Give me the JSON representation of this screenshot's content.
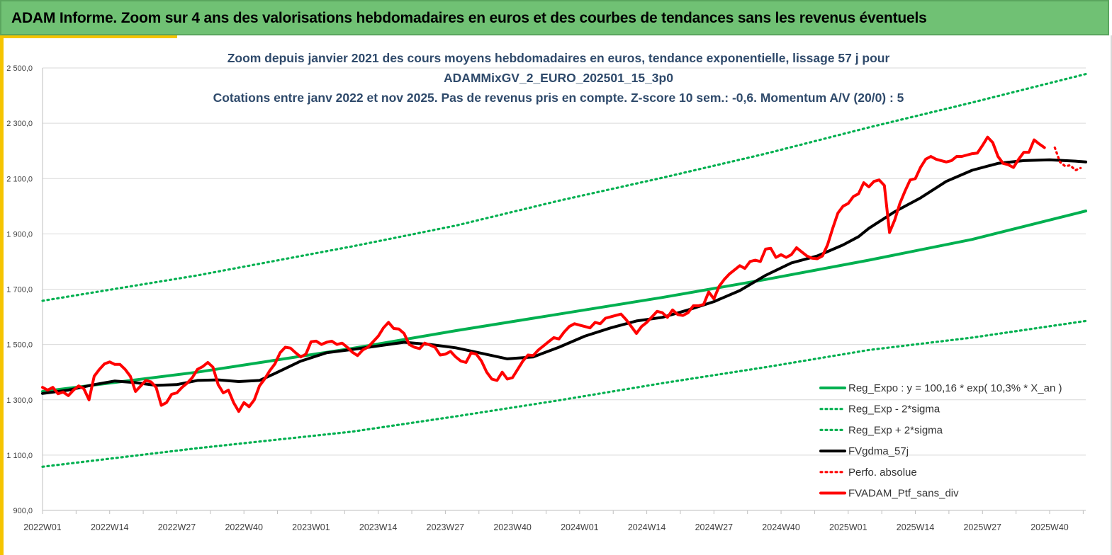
{
  "banner": {
    "text": "ADAM Informe. Zoom sur 4 ans des valorisations hebdomadaires en euros et des courbes de tendances sans les revenus éventuels"
  },
  "colors": {
    "banner_bg": "#70c174",
    "accent_yellow": "#f5c400",
    "title_text": "#2f4a6b",
    "reg_expo": "#00b050",
    "bands": "#00b050",
    "gdma": "#000000",
    "perf": "#ff0000"
  },
  "chart_data": {
    "type": "line",
    "title_lines": [
      "Zoom depuis janvier 2021 des cours moyens hebdomadaires  en euros, tendance exponentielle, lissage 57 j pour",
      "ADAMMixGV_2_EURO_202501_15_3p0",
      "Cotations  entre janv 2022 et nov 2025. Pas de revenus pris en compte. Z-score 10 sem.: -0,6. Momentum A/V (20/0) : 5"
    ],
    "ylim": [
      900,
      2500
    ],
    "y_ticks": [
      {
        "value": 900,
        "label": "900,0"
      },
      {
        "value": 1100,
        "label": "1 100,0"
      },
      {
        "value": 1300,
        "label": "1 300,0"
      },
      {
        "value": 1500,
        "label": "1 500,0"
      },
      {
        "value": 1700,
        "label": "1 700,0"
      },
      {
        "value": 1900,
        "label": "1 900,0"
      },
      {
        "value": 2100,
        "label": "2 100,0"
      },
      {
        "value": 2300,
        "label": "2 300,0"
      },
      {
        "value": 2500,
        "label": "2 500,0"
      }
    ],
    "x_range_weeks": [
      0,
      202
    ],
    "x_ticks": [
      {
        "week": 0,
        "label": "2022W01"
      },
      {
        "week": 13,
        "label": "2022W14"
      },
      {
        "week": 26,
        "label": "2022W27"
      },
      {
        "week": 39,
        "label": "2022W40"
      },
      {
        "week": 52,
        "label": "2023W01"
      },
      {
        "week": 65,
        "label": "2023W14"
      },
      {
        "week": 78,
        "label": "2023W27"
      },
      {
        "week": 91,
        "label": "2023W40"
      },
      {
        "week": 104,
        "label": "2024W01"
      },
      {
        "week": 117,
        "label": "2024W14"
      },
      {
        "week": 130,
        "label": "2024W27"
      },
      {
        "week": 143,
        "label": "2024W40"
      },
      {
        "week": 156,
        "label": "2025W01"
      },
      {
        "week": 169,
        "label": "2025W14"
      },
      {
        "week": 182,
        "label": "2025W27"
      },
      {
        "week": 195,
        "label": "2025W40"
      }
    ],
    "grid": true,
    "legend_position": "bottom-right",
    "series": [
      {
        "name": "Reg_Expo : y = 100,16 * exp( 10,3% *  X_an )",
        "style": "solid-thick",
        "color": "#00b050",
        "points": [
          [
            0,
            1330
          ],
          [
            30,
            1400
          ],
          [
            60,
            1486
          ],
          [
            80,
            1550
          ],
          [
            100,
            1610
          ],
          [
            120,
            1670
          ],
          [
            140,
            1735
          ],
          [
            160,
            1805
          ],
          [
            180,
            1880
          ],
          [
            202,
            1983
          ]
        ]
      },
      {
        "name": "Reg_Exp - 2*sigma",
        "style": "dotted",
        "color": "#00b050",
        "points": [
          [
            0,
            1058
          ],
          [
            30,
            1125
          ],
          [
            60,
            1185
          ],
          [
            80,
            1240
          ],
          [
            100,
            1298
          ],
          [
            120,
            1360
          ],
          [
            140,
            1418
          ],
          [
            160,
            1480
          ],
          [
            180,
            1525
          ],
          [
            202,
            1585
          ]
        ]
      },
      {
        "name": "Reg_Exp + 2*sigma",
        "style": "dotted",
        "color": "#00b050",
        "points": [
          [
            0,
            1658
          ],
          [
            30,
            1750
          ],
          [
            60,
            1855
          ],
          [
            80,
            1930
          ],
          [
            100,
            2020
          ],
          [
            120,
            2103
          ],
          [
            140,
            2190
          ],
          [
            160,
            2285
          ],
          [
            180,
            2375
          ],
          [
            202,
            2478
          ]
        ]
      },
      {
        "name": "FVgdma_57j",
        "style": "solid-thick",
        "color": "#000000",
        "points": [
          [
            0,
            1323
          ],
          [
            5,
            1335
          ],
          [
            10,
            1355
          ],
          [
            14,
            1368
          ],
          [
            18,
            1362
          ],
          [
            22,
            1352
          ],
          [
            26,
            1355
          ],
          [
            30,
            1370
          ],
          [
            34,
            1372
          ],
          [
            38,
            1366
          ],
          [
            42,
            1370
          ],
          [
            45,
            1395
          ],
          [
            50,
            1440
          ],
          [
            55,
            1470
          ],
          [
            60,
            1482
          ],
          [
            65,
            1495
          ],
          [
            70,
            1508
          ],
          [
            75,
            1500
          ],
          [
            80,
            1488
          ],
          [
            85,
            1468
          ],
          [
            90,
            1448
          ],
          [
            95,
            1455
          ],
          [
            100,
            1490
          ],
          [
            105,
            1530
          ],
          [
            110,
            1560
          ],
          [
            115,
            1585
          ],
          [
            120,
            1598
          ],
          [
            125,
            1625
          ],
          [
            130,
            1655
          ],
          [
            135,
            1695
          ],
          [
            140,
            1750
          ],
          [
            145,
            1795
          ],
          [
            150,
            1820
          ],
          [
            155,
            1860
          ],
          [
            158,
            1890
          ],
          [
            160,
            1920
          ],
          [
            165,
            1980
          ],
          [
            170,
            2030
          ],
          [
            175,
            2090
          ],
          [
            180,
            2130
          ],
          [
            185,
            2155
          ],
          [
            190,
            2165
          ],
          [
            195,
            2168
          ],
          [
            200,
            2163
          ],
          [
            202,
            2160
          ]
        ]
      },
      {
        "name": "Perfo. absolue",
        "style": "dotted",
        "color": "#ff0000",
        "points": [
          [
            196,
            2212
          ],
          [
            197,
            2160
          ],
          [
            198,
            2145
          ],
          [
            199,
            2148
          ],
          [
            200,
            2130
          ],
          [
            201,
            2138
          ]
        ]
      },
      {
        "name": "FVADAM_Ptf_sans_div",
        "style": "solid-thick",
        "color": "#ff0000",
        "points": [
          [
            0,
            1345
          ],
          [
            1,
            1335
          ],
          [
            2,
            1345
          ],
          [
            3,
            1322
          ],
          [
            4,
            1328
          ],
          [
            5,
            1315
          ],
          [
            6,
            1335
          ],
          [
            7,
            1350
          ],
          [
            8,
            1340
          ],
          [
            9,
            1300
          ],
          [
            10,
            1385
          ],
          [
            11,
            1410
          ],
          [
            12,
            1430
          ],
          [
            13,
            1437
          ],
          [
            14,
            1428
          ],
          [
            15,
            1428
          ],
          [
            16,
            1410
          ],
          [
            17,
            1385
          ],
          [
            18,
            1330
          ],
          [
            19,
            1350
          ],
          [
            20,
            1370
          ],
          [
            21,
            1365
          ],
          [
            22,
            1345
          ],
          [
            23,
            1280
          ],
          [
            24,
            1290
          ],
          [
            25,
            1320
          ],
          [
            26,
            1325
          ],
          [
            27,
            1345
          ],
          [
            28,
            1360
          ],
          [
            29,
            1380
          ],
          [
            30,
            1410
          ],
          [
            31,
            1420
          ],
          [
            32,
            1435
          ],
          [
            33,
            1418
          ],
          [
            34,
            1355
          ],
          [
            35,
            1325
          ],
          [
            36,
            1335
          ],
          [
            37,
            1290
          ],
          [
            38,
            1258
          ],
          [
            39,
            1290
          ],
          [
            40,
            1275
          ],
          [
            41,
            1300
          ],
          [
            42,
            1350
          ],
          [
            43,
            1375
          ],
          [
            44,
            1405
          ],
          [
            45,
            1430
          ],
          [
            46,
            1470
          ],
          [
            47,
            1490
          ],
          [
            48,
            1487
          ],
          [
            49,
            1470
          ],
          [
            50,
            1455
          ],
          [
            51,
            1465
          ],
          [
            52,
            1510
          ],
          [
            53,
            1512
          ],
          [
            54,
            1500
          ],
          [
            55,
            1508
          ],
          [
            56,
            1512
          ],
          [
            57,
            1500
          ],
          [
            58,
            1505
          ],
          [
            59,
            1490
          ],
          [
            60,
            1472
          ],
          [
            61,
            1460
          ],
          [
            62,
            1480
          ],
          [
            63,
            1490
          ],
          [
            64,
            1510
          ],
          [
            65,
            1530
          ],
          [
            66,
            1560
          ],
          [
            67,
            1580
          ],
          [
            68,
            1558
          ],
          [
            69,
            1556
          ],
          [
            70,
            1540
          ],
          [
            71,
            1500
          ],
          [
            72,
            1490
          ],
          [
            73,
            1485
          ],
          [
            74,
            1505
          ],
          [
            75,
            1498
          ],
          [
            76,
            1490
          ],
          [
            77,
            1462
          ],
          [
            78,
            1465
          ],
          [
            79,
            1475
          ],
          [
            80,
            1455
          ],
          [
            81,
            1440
          ],
          [
            82,
            1435
          ],
          [
            83,
            1470
          ],
          [
            84,
            1465
          ],
          [
            85,
            1440
          ],
          [
            86,
            1400
          ],
          [
            87,
            1375
          ],
          [
            88,
            1370
          ],
          [
            89,
            1400
          ],
          [
            90,
            1375
          ],
          [
            91,
            1380
          ],
          [
            92,
            1410
          ],
          [
            93,
            1440
          ],
          [
            94,
            1462
          ],
          [
            95,
            1460
          ],
          [
            96,
            1480
          ],
          [
            97,
            1495
          ],
          [
            98,
            1510
          ],
          [
            99,
            1525
          ],
          [
            100,
            1520
          ],
          [
            101,
            1545
          ],
          [
            102,
            1565
          ],
          [
            103,
            1575
          ],
          [
            104,
            1570
          ],
          [
            105,
            1565
          ],
          [
            106,
            1560
          ],
          [
            107,
            1580
          ],
          [
            108,
            1575
          ],
          [
            109,
            1595
          ],
          [
            110,
            1600
          ],
          [
            111,
            1605
          ],
          [
            112,
            1610
          ],
          [
            113,
            1590
          ],
          [
            114,
            1565
          ],
          [
            115,
            1540
          ],
          [
            116,
            1565
          ],
          [
            117,
            1580
          ],
          [
            118,
            1600
          ],
          [
            119,
            1620
          ],
          [
            120,
            1615
          ],
          [
            121,
            1598
          ],
          [
            122,
            1625
          ],
          [
            123,
            1608
          ],
          [
            124,
            1605
          ],
          [
            125,
            1615
          ],
          [
            126,
            1640
          ],
          [
            127,
            1640
          ],
          [
            128,
            1645
          ],
          [
            129,
            1690
          ],
          [
            130,
            1665
          ],
          [
            131,
            1710
          ],
          [
            132,
            1735
          ],
          [
            133,
            1755
          ],
          [
            134,
            1770
          ],
          [
            135,
            1785
          ],
          [
            136,
            1775
          ],
          [
            137,
            1800
          ],
          [
            138,
            1805
          ],
          [
            139,
            1800
          ],
          [
            140,
            1845
          ],
          [
            141,
            1848
          ],
          [
            142,
            1815
          ],
          [
            143,
            1825
          ],
          [
            144,
            1815
          ],
          [
            145,
            1825
          ],
          [
            146,
            1850
          ],
          [
            147,
            1835
          ],
          [
            148,
            1820
          ],
          [
            149,
            1812
          ],
          [
            150,
            1810
          ],
          [
            151,
            1820
          ],
          [
            152,
            1860
          ],
          [
            153,
            1920
          ],
          [
            154,
            1975
          ],
          [
            155,
            2000
          ],
          [
            156,
            2010
          ],
          [
            157,
            2035
          ],
          [
            158,
            2045
          ],
          [
            159,
            2085
          ],
          [
            160,
            2070
          ],
          [
            161,
            2090
          ],
          [
            162,
            2095
          ],
          [
            163,
            2075
          ],
          [
            164,
            1905
          ],
          [
            165,
            1950
          ],
          [
            166,
            2010
          ],
          [
            167,
            2055
          ],
          [
            168,
            2095
          ],
          [
            169,
            2100
          ],
          [
            170,
            2140
          ],
          [
            171,
            2170
          ],
          [
            172,
            2180
          ],
          [
            173,
            2170
          ],
          [
            174,
            2165
          ],
          [
            175,
            2160
          ],
          [
            176,
            2165
          ],
          [
            177,
            2180
          ],
          [
            178,
            2180
          ],
          [
            179,
            2185
          ],
          [
            180,
            2190
          ],
          [
            181,
            2192
          ],
          [
            182,
            2220
          ],
          [
            183,
            2250
          ],
          [
            184,
            2230
          ],
          [
            185,
            2180
          ],
          [
            186,
            2155
          ],
          [
            187,
            2150
          ],
          [
            188,
            2140
          ],
          [
            189,
            2170
          ],
          [
            190,
            2195
          ],
          [
            191,
            2195
          ],
          [
            192,
            2240
          ],
          [
            193,
            2225
          ],
          [
            194,
            2212
          ]
        ]
      }
    ]
  }
}
